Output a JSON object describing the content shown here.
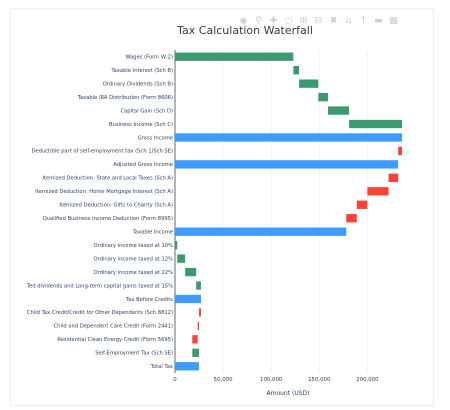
{
  "chart_data": {
    "type": "bar",
    "orientation": "horizontal-waterfall",
    "title": "Tax Calculation Waterfall",
    "xlabel": "Amount (USD)",
    "ylabel": "",
    "xlim": [
      0,
      236000
    ],
    "x_ticks": [
      0,
      50000,
      100000,
      150000,
      200000
    ],
    "x_tick_labels": [
      "0",
      "50,000",
      "100,000",
      "150,000",
      "200,000"
    ],
    "grid": true,
    "legend": "none",
    "colors": {
      "increase": "#3d9970",
      "decrease": "#ff4136",
      "total": "#3f9cff"
    },
    "steps": [
      {
        "label": "Wages (Form W-2)",
        "start": 0,
        "end": 123000,
        "kind": "increase"
      },
      {
        "label": "Taxable Interest (Sch B)",
        "start": 123000,
        "end": 129000,
        "kind": "increase"
      },
      {
        "label": "Ordinary Dividends (Sch B)",
        "start": 129000,
        "end": 149000,
        "kind": "increase"
      },
      {
        "label": "Taxable IRA Distribution (Form 8606)",
        "start": 149000,
        "end": 159000,
        "kind": "increase"
      },
      {
        "label": "Capital Gain (Sch D)",
        "start": 159000,
        "end": 181000,
        "kind": "increase"
      },
      {
        "label": "Business Income (Sch C)",
        "start": 181000,
        "end": 236000,
        "kind": "increase"
      },
      {
        "label": "Gross Income",
        "start": 0,
        "end": 236000,
        "kind": "total"
      },
      {
        "label": "Deductible part of self-employment tax (Sch 1/Sch SE)",
        "start": 236000,
        "end": 232000,
        "kind": "decrease"
      },
      {
        "label": "Adjusted Gross Income",
        "start": 0,
        "end": 232000,
        "kind": "total"
      },
      {
        "label": "Itemized Deduction: State and Local Taxes (Sch A)",
        "start": 232000,
        "end": 222000,
        "kind": "decrease"
      },
      {
        "label": "Itemized Deduction: Home Mortgage Interest (Sch A)",
        "start": 222000,
        "end": 200000,
        "kind": "decrease"
      },
      {
        "label": "Itemized Deduction: Gifts to Charity (Sch A)",
        "start": 200000,
        "end": 189000,
        "kind": "decrease"
      },
      {
        "label": "Qualified Business Income Deduction (Form 8995)",
        "start": 189000,
        "end": 178000,
        "kind": "decrease"
      },
      {
        "label": "Taxable Income",
        "start": 0,
        "end": 178000,
        "kind": "total"
      },
      {
        "label": "Ordinary income taxed at 10%",
        "start": 0,
        "end": 2300,
        "kind": "increase"
      },
      {
        "label": "Ordinary income taxed at 12%",
        "start": 2300,
        "end": 10500,
        "kind": "increase"
      },
      {
        "label": "Ordinary income taxed at 22%",
        "start": 10500,
        "end": 22000,
        "kind": "increase"
      },
      {
        "label": "Ted dividends and Long-term capital gains taxed at 15%",
        "start": 22000,
        "end": 27000,
        "kind": "increase"
      },
      {
        "label": "Tax Before Credits",
        "start": 0,
        "end": 27000,
        "kind": "total"
      },
      {
        "label": "Child Tax Credit/Credit for Other Dependents (Sch 8812)",
        "start": 27000,
        "end": 25000,
        "kind": "decrease"
      },
      {
        "label": "Child and Dependent Care Credit (Form 2441)",
        "start": 25000,
        "end": 23600,
        "kind": "decrease"
      },
      {
        "label": "Residential Clean Energy Credit (Form 5695)",
        "start": 23600,
        "end": 18000,
        "kind": "decrease"
      },
      {
        "label": "Self-Employment Tax (Sch SE)",
        "start": 18000,
        "end": 25000,
        "kind": "increase"
      },
      {
        "label": "Total Tax",
        "start": 0,
        "end": 25000,
        "kind": "total"
      }
    ]
  },
  "toolbar": {
    "icons": [
      "camera-icon",
      "zoom-icon",
      "pan-icon",
      "lasso-icon",
      "zoom-in-icon",
      "zoom-out-icon",
      "autoscale-icon",
      "home-icon",
      "spike-icon",
      "compare-icon",
      "bar-chart-icon"
    ]
  }
}
